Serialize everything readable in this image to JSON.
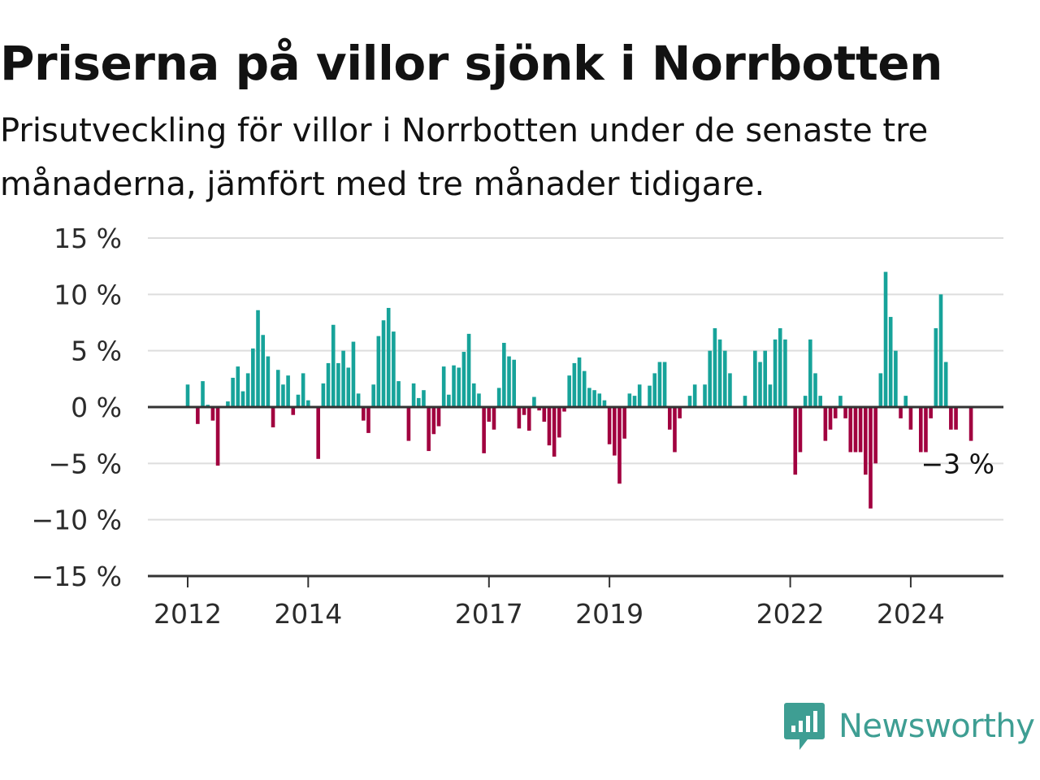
{
  "title": "Priserna på villor sjönk i Norrbotten",
  "subtitle": "Prisutveckling för villor i Norrbotten under de senaste tre månaderna, jämfört med tre månader tidigare.",
  "brand": {
    "name": "Newsworthy",
    "icon": "newsworthy-logo-icon",
    "color": "#3e9e93"
  },
  "colors": {
    "positive": "#17a39a",
    "negative": "#a1003f",
    "grid": "#dddddd",
    "axis": "#333333"
  },
  "chart_data": {
    "type": "bar",
    "title": "Priserna på villor sjönk i Norrbotten",
    "xlabel": "",
    "ylabel": "",
    "ylim": [
      -15,
      15
    ],
    "yticks": [
      15,
      10,
      5,
      0,
      -5,
      -10,
      -15
    ],
    "ytick_labels": [
      "15 %",
      "10 %",
      "5 %",
      "0 %",
      "−5 %",
      "−10 %",
      "−15 %"
    ],
    "xticks": [
      {
        "label": "2012",
        "at": "2012-01"
      },
      {
        "label": "2014",
        "at": "2014-01"
      },
      {
        "label": "2017",
        "at": "2017-01"
      },
      {
        "label": "2019",
        "at": "2019-01"
      },
      {
        "label": "2022",
        "at": "2022-01"
      },
      {
        "label": "2024",
        "at": "2024-01"
      }
    ],
    "x_range": [
      "2011-06",
      "2025-12"
    ],
    "grid": true,
    "series": [
      {
        "unit": "%",
        "points": [
          [
            "2012-01",
            2
          ],
          [
            "2012-02",
            0
          ],
          [
            "2012-03",
            -1.5
          ],
          [
            "2012-04",
            2.3
          ],
          [
            "2012-05",
            0.2
          ],
          [
            "2012-06",
            -1.2
          ],
          [
            "2012-07",
            -5.2
          ],
          [
            "2012-08",
            0
          ],
          [
            "2012-09",
            0.5
          ],
          [
            "2012-10",
            2.6
          ],
          [
            "2012-11",
            3.6
          ],
          [
            "2012-12",
            1.4
          ],
          [
            "2013-01",
            3
          ],
          [
            "2013-02",
            5.2
          ],
          [
            "2013-03",
            8.6
          ],
          [
            "2013-04",
            6.4
          ],
          [
            "2013-05",
            4.5
          ],
          [
            "2013-06",
            -1.8
          ],
          [
            "2013-07",
            3.3
          ],
          [
            "2013-08",
            2
          ],
          [
            "2013-09",
            2.8
          ],
          [
            "2013-10",
            -0.7
          ],
          [
            "2013-11",
            1.1
          ],
          [
            "2013-12",
            3
          ],
          [
            "2014-01",
            0.6
          ],
          [
            "2014-02",
            0
          ],
          [
            "2014-03",
            -4.6
          ],
          [
            "2014-04",
            2.1
          ],
          [
            "2014-05",
            3.9
          ],
          [
            "2014-06",
            7.3
          ],
          [
            "2014-07",
            3.9
          ],
          [
            "2014-08",
            5
          ],
          [
            "2014-09",
            3.5
          ],
          [
            "2014-10",
            5.8
          ],
          [
            "2014-11",
            1.2
          ],
          [
            "2014-12",
            -1.2
          ],
          [
            "2015-01",
            -2.3
          ],
          [
            "2015-02",
            2
          ],
          [
            "2015-03",
            6.3
          ],
          [
            "2015-04",
            7.7
          ],
          [
            "2015-05",
            8.8
          ],
          [
            "2015-06",
            6.7
          ],
          [
            "2015-07",
            2.3
          ],
          [
            "2015-08",
            0
          ],
          [
            "2015-09",
            -3
          ],
          [
            "2015-10",
            2.1
          ],
          [
            "2015-11",
            0.8
          ],
          [
            "2015-12",
            1.5
          ],
          [
            "2016-01",
            -3.9
          ],
          [
            "2016-02",
            -2.4
          ],
          [
            "2016-03",
            -1.7
          ],
          [
            "2016-04",
            3.6
          ],
          [
            "2016-05",
            1.1
          ],
          [
            "2016-06",
            3.7
          ],
          [
            "2016-07",
            3.5
          ],
          [
            "2016-08",
            4.9
          ],
          [
            "2016-09",
            6.5
          ],
          [
            "2016-10",
            2.1
          ],
          [
            "2016-11",
            1.2
          ],
          [
            "2016-12",
            -4.1
          ],
          [
            "2017-01",
            -1.3
          ],
          [
            "2017-02",
            -2
          ],
          [
            "2017-03",
            1.7
          ],
          [
            "2017-04",
            5.7
          ],
          [
            "2017-05",
            4.5
          ],
          [
            "2017-06",
            4.2
          ],
          [
            "2017-07",
            -1.9
          ],
          [
            "2017-08",
            -0.7
          ],
          [
            "2017-09",
            -2.1
          ],
          [
            "2017-10",
            0.9
          ],
          [
            "2017-11",
            -0.3
          ],
          [
            "2017-12",
            -1.3
          ],
          [
            "2018-01",
            -3.4
          ],
          [
            "2018-02",
            -4.4
          ],
          [
            "2018-03",
            -2.7
          ],
          [
            "2018-04",
            -0.4
          ],
          [
            "2018-05",
            2.8
          ],
          [
            "2018-06",
            3.9
          ],
          [
            "2018-07",
            4.4
          ],
          [
            "2018-08",
            3.2
          ],
          [
            "2018-09",
            1.7
          ],
          [
            "2018-10",
            1.5
          ],
          [
            "2018-11",
            1.2
          ],
          [
            "2018-12",
            0.6
          ],
          [
            "2019-01",
            -3.3
          ],
          [
            "2019-02",
            -4.3
          ],
          [
            "2019-03",
            -6.8
          ],
          [
            "2019-04",
            -2.8
          ],
          [
            "2019-05",
            1.2
          ],
          [
            "2019-06",
            1
          ],
          [
            "2019-07",
            2
          ],
          [
            "2019-08",
            0
          ],
          [
            "2019-09",
            1.9
          ],
          [
            "2019-10",
            3
          ],
          [
            "2019-11",
            4
          ],
          [
            "2019-12",
            4
          ],
          [
            "2020-01",
            -2
          ],
          [
            "2020-02",
            -4
          ],
          [
            "2020-03",
            -1
          ],
          [
            "2020-04",
            0
          ],
          [
            "2020-05",
            1
          ],
          [
            "2020-06",
            2
          ],
          [
            "2020-07",
            0
          ],
          [
            "2020-08",
            2
          ],
          [
            "2020-09",
            5
          ],
          [
            "2020-10",
            7
          ],
          [
            "2020-11",
            6
          ],
          [
            "2020-12",
            5
          ],
          [
            "2021-01",
            3
          ],
          [
            "2021-02",
            0
          ],
          [
            "2021-03",
            0
          ],
          [
            "2021-04",
            1
          ],
          [
            "2021-05",
            0
          ],
          [
            "2021-06",
            5
          ],
          [
            "2021-07",
            4
          ],
          [
            "2021-08",
            5
          ],
          [
            "2021-09",
            2
          ],
          [
            "2021-10",
            6
          ],
          [
            "2021-11",
            7
          ],
          [
            "2021-12",
            6
          ],
          [
            "2022-01",
            0
          ],
          [
            "2022-02",
            -6
          ],
          [
            "2022-03",
            -4
          ],
          [
            "2022-04",
            1
          ],
          [
            "2022-05",
            6
          ],
          [
            "2022-06",
            3
          ],
          [
            "2022-07",
            1
          ],
          [
            "2022-08",
            -3
          ],
          [
            "2022-09",
            -2
          ],
          [
            "2022-10",
            -1
          ],
          [
            "2022-11",
            1
          ],
          [
            "2022-12",
            -1
          ],
          [
            "2023-01",
            -4
          ],
          [
            "2023-02",
            -4
          ],
          [
            "2023-03",
            -4
          ],
          [
            "2023-04",
            -6
          ],
          [
            "2023-05",
            -9
          ],
          [
            "2023-06",
            -5
          ],
          [
            "2023-07",
            3
          ],
          [
            "2023-08",
            12
          ],
          [
            "2023-09",
            8
          ],
          [
            "2023-10",
            5
          ],
          [
            "2023-11",
            -1
          ],
          [
            "2023-12",
            1
          ],
          [
            "2024-01",
            -2
          ],
          [
            "2024-02",
            0
          ],
          [
            "2024-03",
            -4
          ],
          [
            "2024-04",
            -4
          ],
          [
            "2024-05",
            -1
          ],
          [
            "2024-06",
            7
          ],
          [
            "2024-07",
            10
          ],
          [
            "2024-08",
            4
          ],
          [
            "2024-09",
            -2
          ],
          [
            "2024-10",
            -2
          ],
          [
            "2024-11",
            0
          ],
          [
            "2024-12",
            0
          ],
          [
            "2025-01",
            -3
          ]
        ]
      }
    ],
    "last_value_label": "−3 %"
  }
}
